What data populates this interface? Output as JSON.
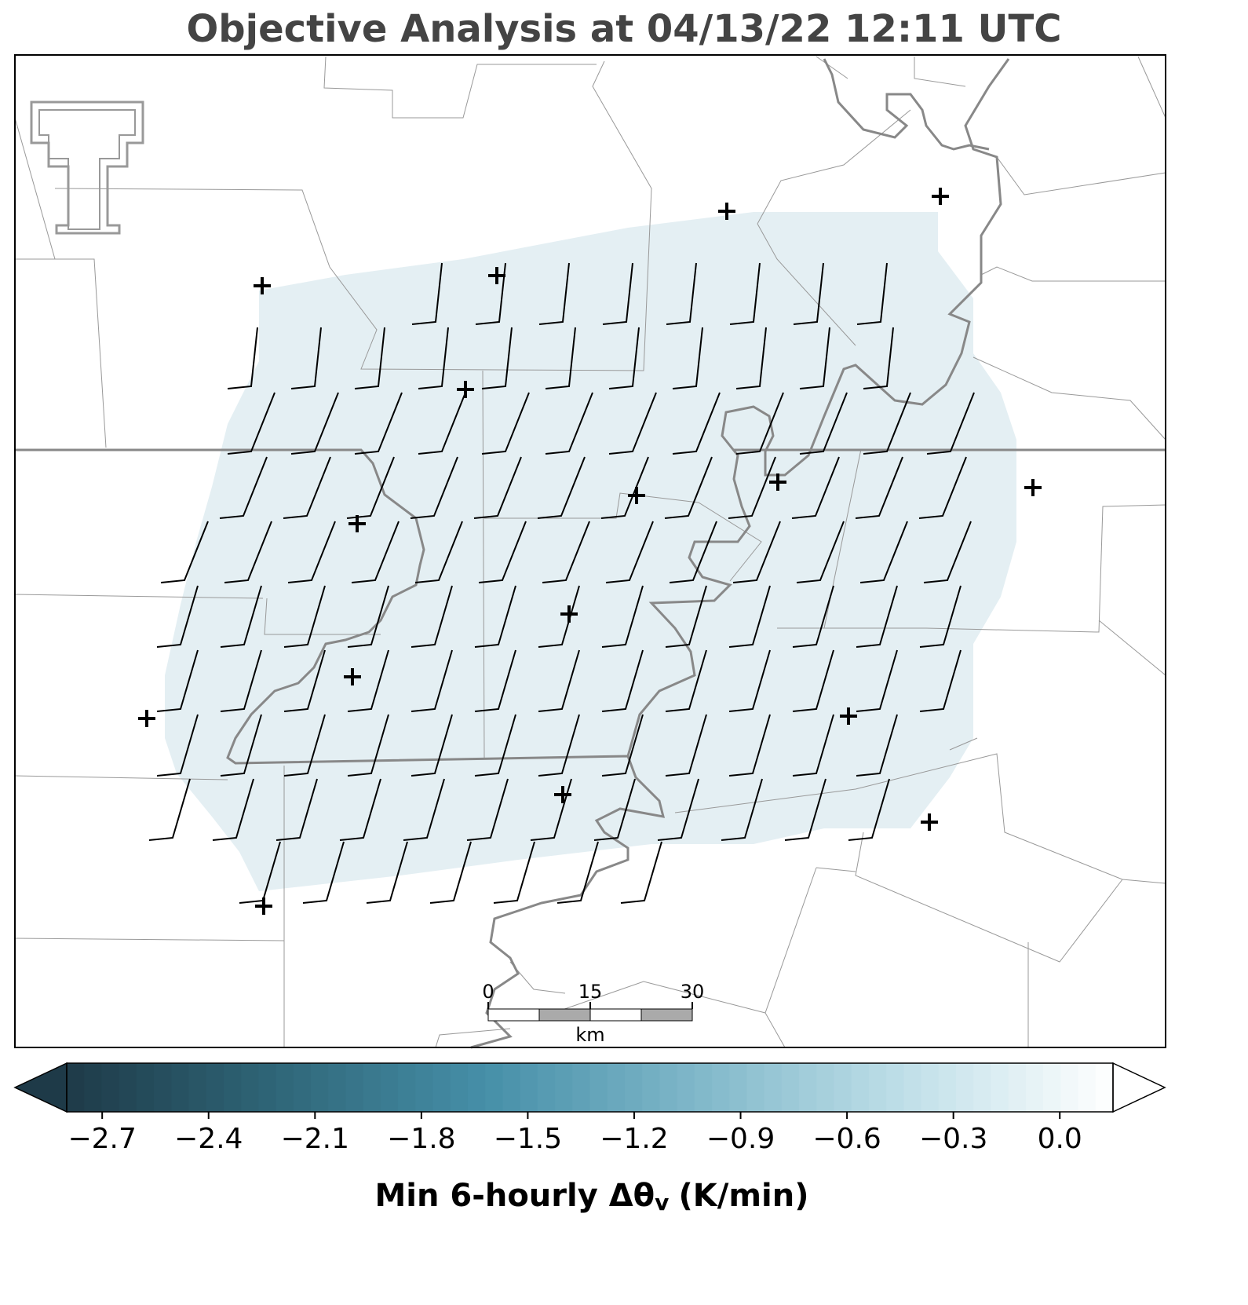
{
  "title": "Objective Analysis at 04/13/22 12:11 UTC",
  "scale_bar": {
    "ticks": [
      0,
      15,
      30
    ],
    "unit": "km"
  },
  "colorbar": {
    "label": "Min 6-hourly Δθ",
    "label_subscript": "v",
    "label_unit": "(K/min)",
    "lim": [
      -2.8,
      0.15
    ],
    "ticks": [
      {
        "value": -2.7,
        "label": "−2.7"
      },
      {
        "value": -2.4,
        "label": "−2.4"
      },
      {
        "value": -2.1,
        "label": "−2.1"
      },
      {
        "value": -1.8,
        "label": "−1.8"
      },
      {
        "value": -1.5,
        "label": "−1.5"
      },
      {
        "value": -1.2,
        "label": "−1.2"
      },
      {
        "value": -0.9,
        "label": "−0.9"
      },
      {
        "value": -0.6,
        "label": "−0.6"
      },
      {
        "value": -0.3,
        "label": "−0.3"
      },
      {
        "value": 0,
        "label": "0.0"
      }
    ],
    "colors": [
      "#1e3a48",
      "#2f6678",
      "#468fa8",
      "#7fb7c9",
      "#bfdfe8",
      "#ffffff"
    ]
  }
}
